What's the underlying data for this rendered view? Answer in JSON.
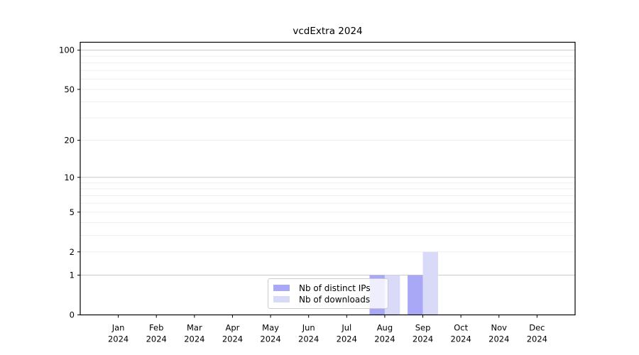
{
  "chart_data": {
    "type": "bar",
    "title": "vcdExtra 2024",
    "categories": [
      "Jan 2024",
      "Feb 2024",
      "Mar 2024",
      "Apr 2024",
      "May 2024",
      "Jun 2024",
      "Jul 2024",
      "Aug 2024",
      "Sep 2024",
      "Oct 2024",
      "Nov 2024",
      "Dec 2024"
    ],
    "series": [
      {
        "name": "Nb of distinct IPs",
        "color": "#a8a8f6",
        "values": [
          0,
          0,
          0,
          0,
          0,
          0,
          0,
          1,
          1,
          0,
          0,
          0
        ]
      },
      {
        "name": "Nb of downloads",
        "color": "#d9d9f8",
        "values": [
          0,
          0,
          0,
          0,
          0,
          0,
          0,
          1,
          2,
          0,
          0,
          0
        ]
      }
    ],
    "xlabel": "",
    "ylabel": "",
    "yscale": "log1p",
    "ylim": [
      0,
      115
    ],
    "y_tick_values": [
      0,
      1,
      2,
      5,
      10,
      20,
      50,
      100
    ],
    "y_major_gridlines": [
      1,
      10,
      100
    ],
    "y_minor_gridlines": [
      2,
      3,
      4,
      5,
      6,
      7,
      8,
      9,
      20,
      30,
      40,
      50,
      60,
      70,
      80,
      90
    ],
    "grid": "horizontal",
    "legend_position": "lower center inside",
    "colors": {
      "background": "#ffffff",
      "axis": "#000000",
      "major_grid": "#c9c9c9",
      "minor_grid": "#efefef",
      "legend_border": "#cccccc",
      "tick_label": "#000000"
    }
  }
}
